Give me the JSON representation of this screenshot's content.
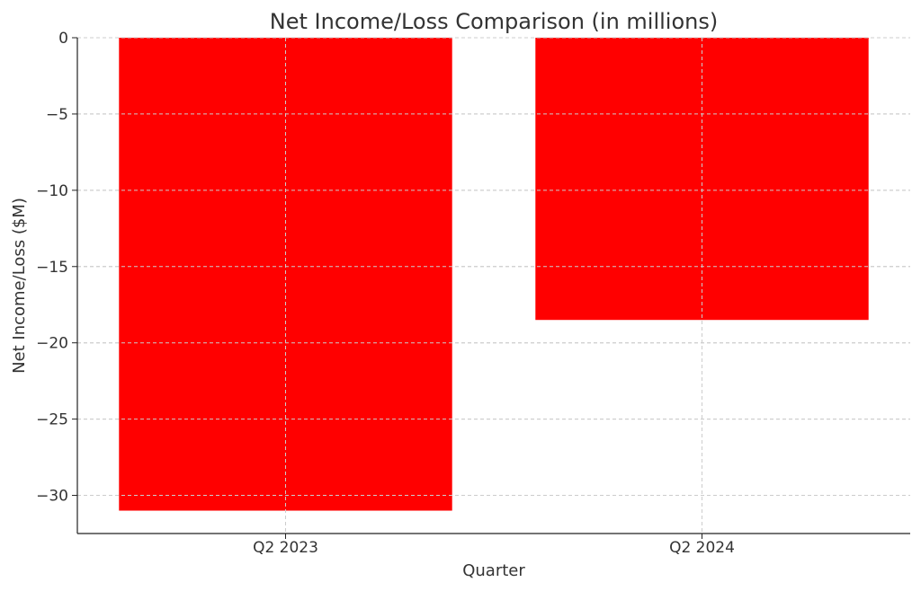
{
  "chart_data": {
    "type": "bar",
    "title": "Net Income/Loss Comparison (in millions)",
    "xlabel": "Quarter",
    "ylabel": "Net Income/Loss ($M)",
    "categories": [
      "Q2 2023",
      "Q2 2024"
    ],
    "values": [
      -31.0,
      -18.5
    ],
    "ylim": [
      -32.5,
      0
    ],
    "yticks": [
      0,
      -5,
      -10,
      -15,
      -20,
      -25,
      -30
    ],
    "ytick_labels": [
      "0",
      "−5",
      "−10",
      "−15",
      "−20",
      "−25",
      "−30"
    ],
    "grid": true,
    "bar_color": "#ff0000"
  }
}
